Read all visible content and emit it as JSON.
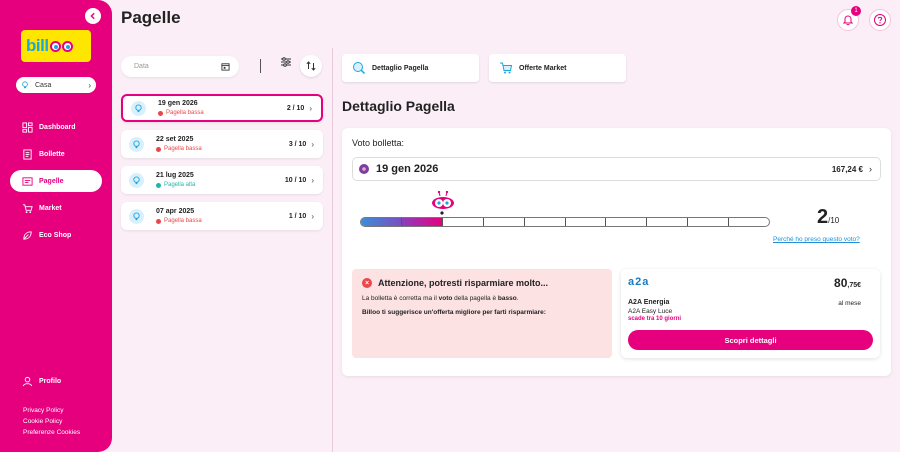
{
  "app": {
    "logo_text": "bill",
    "brand_color": "#e6007e"
  },
  "sidebar": {
    "home_select": "Casa",
    "items": [
      {
        "label": "Dashboard",
        "icon": "dashboard-icon",
        "active": false
      },
      {
        "label": "Bollette",
        "icon": "bill-icon",
        "active": false
      },
      {
        "label": "Pagelle",
        "icon": "report-card-icon",
        "active": true
      },
      {
        "label": "Market",
        "icon": "cart-icon",
        "active": false
      },
      {
        "label": "Eco Shop",
        "icon": "leaf-icon",
        "active": false
      }
    ],
    "profile": "Profilo",
    "footer_links": [
      "Privacy Policy",
      "Cookie Policy",
      "Preferenze Cookies"
    ]
  },
  "header": {
    "title": "Pagelle",
    "notification_count": "1"
  },
  "filters": {
    "date_placeholder": "Data"
  },
  "report_cards": [
    {
      "date": "19 gen 2026",
      "status": "Pagella bassa",
      "status_color": "#e9474a",
      "score": "2 / 10",
      "active": true
    },
    {
      "date": "22 set 2025",
      "status": "Pagella bassa",
      "status_color": "#e9474a",
      "score": "3 / 10",
      "active": false
    },
    {
      "date": "21 lug 2025",
      "status": "Pagella alta",
      "status_color": "#22b5a6",
      "score": "10 / 10",
      "active": false
    },
    {
      "date": "07 apr 2025",
      "status": "Pagella bassa",
      "status_color": "#e9474a",
      "score": "1 / 10",
      "active": false
    }
  ],
  "tabs": [
    {
      "label": "Dettaglio Pagella",
      "icon": "search-bulb-icon"
    },
    {
      "label": "Offerte Market",
      "icon": "cart-icon"
    }
  ],
  "detail": {
    "title": "Dettaglio Pagella",
    "voto_label": "Voto bolletta:",
    "bill_date": "19 gen 2026",
    "bill_amount": "167,24 €",
    "score": 2,
    "score_value": "2",
    "score_denominator": "/10",
    "why_link": "Perché ho preso questo voto?",
    "gauge_fill_fraction": 0.2,
    "alert": {
      "title": "Attenzione, potresti risparmiare molto...",
      "line1_pre": "La bolletta è corretta ma il ",
      "line1_b1": "voto",
      "line1_mid": " della pagella è ",
      "line1_b2": "basso",
      "line1_post": ".",
      "line2": "Billoo ti suggerisce un'offerta migliore per farti risparmiare:"
    },
    "offer": {
      "logo": "a2a",
      "price_int": "80",
      "price_dec": ",75€",
      "provider": "A2A Energia",
      "per_month": "al mese",
      "plan": "A2A Easy Luce",
      "expiry": "scade tra 10 giorni",
      "button": "Scopri dettagli"
    }
  }
}
